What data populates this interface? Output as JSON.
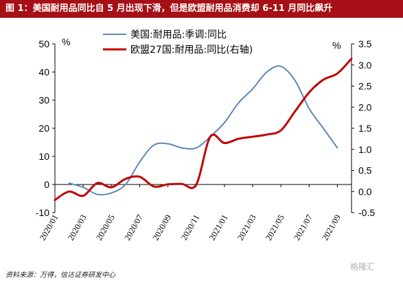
{
  "title": "图 1：美国耐用品同比自 5 月出现下滑，但是欧盟耐用品消费却 6-11 月同比飙升",
  "source": "资料来源：万得，信达证券研发中心",
  "watermark": "格隆汇",
  "colors": {
    "title_bg": "#a50f15",
    "us": "#5b86b8",
    "eu": "#c00000"
  },
  "chart_data": {
    "type": "line",
    "title": "",
    "x_labels": [
      "2020/01",
      "2020/03",
      "2020/05",
      "2020/07",
      "2020/09",
      "2020/11",
      "2021/01",
      "2021/03",
      "2021/05",
      "2021/07",
      "2021/09"
    ],
    "y_left": {
      "min": -10,
      "max": 50,
      "ticks": [
        -10,
        0,
        10,
        20,
        30,
        40,
        50
      ],
      "unit": "%"
    },
    "y_right": {
      "min": -0.5,
      "max": 3.5,
      "ticks": [
        -0.5,
        0.0,
        0.5,
        1.0,
        1.5,
        2.0,
        2.5,
        3.0,
        3.5
      ],
      "unit": "%"
    },
    "legend": "top-left",
    "series": [
      {
        "name": "美国:耐用品:季调:同比",
        "axis": "left",
        "color": "#5b86b8",
        "x": [
          "2020/02",
          "2020/03",
          "2020/04",
          "2020/05",
          "2020/06",
          "2020/07",
          "2020/08",
          "2020/09",
          "2020/10",
          "2020/11",
          "2020/12",
          "2021/01",
          "2021/02",
          "2021/03",
          "2021/04",
          "2021/05",
          "2021/06",
          "2021/07",
          "2021/08",
          "2021/09"
        ],
        "values": [
          0.5,
          -1,
          -3.5,
          -3,
          0,
          8,
          14,
          14.5,
          13,
          13,
          17,
          22,
          29,
          34,
          40,
          42,
          37,
          27,
          20,
          13
        ]
      },
      {
        "name": "欧盟27国:耐用品:同比(右轴)",
        "axis": "right",
        "color": "#c00000",
        "x": [
          "2020/01",
          "2020/02",
          "2020/03",
          "2020/04",
          "2020/05",
          "2020/06",
          "2020/07",
          "2020/08",
          "2020/09",
          "2020/10",
          "2020/11",
          "2020/12",
          "2021/01",
          "2021/02",
          "2021/03",
          "2021/04",
          "2021/05",
          "2021/06",
          "2021/07",
          "2021/08",
          "2021/09",
          "2021/10"
        ],
        "values": [
          -0.2,
          0.0,
          -0.1,
          0.2,
          0.1,
          0.3,
          0.35,
          0.12,
          0.17,
          0.18,
          0.16,
          1.3,
          1.15,
          1.25,
          1.3,
          1.35,
          1.45,
          1.9,
          2.35,
          2.65,
          2.8,
          3.15
        ]
      }
    ]
  }
}
